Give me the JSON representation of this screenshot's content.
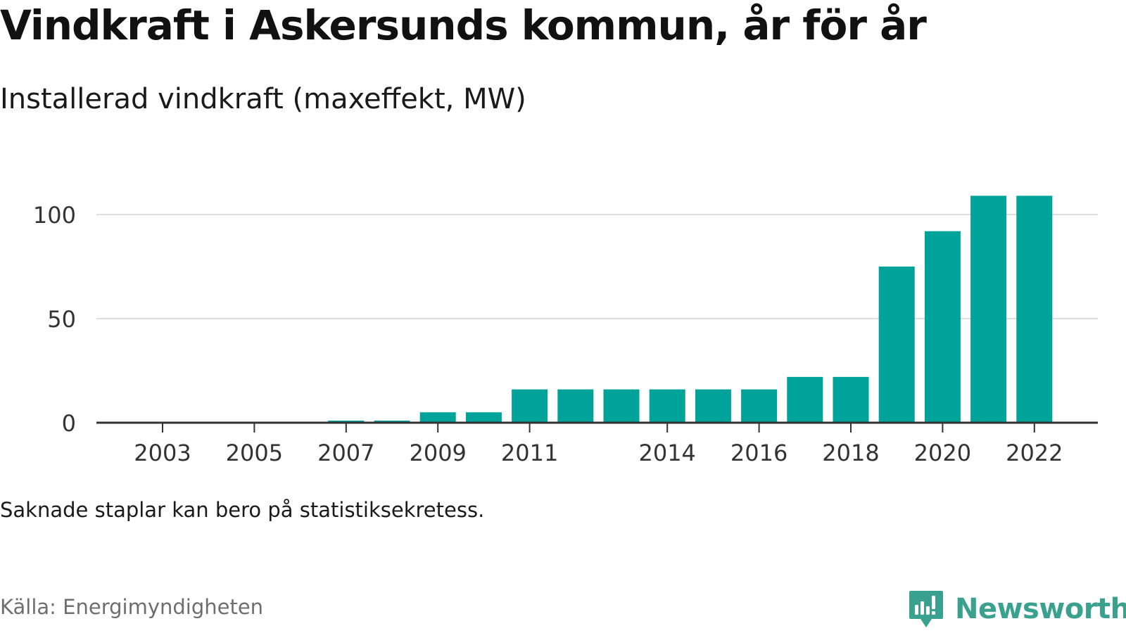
{
  "header": {
    "title": "Vindkraft i Askersunds kommun, år för år",
    "subtitle": "Installerad vindkraft (maxeffekt, MW)"
  },
  "footer": {
    "note": "Saknade staplar kan bero på statistiksekretess.",
    "source": "Källa: Energimyndigheten",
    "brand": "Newsworthy"
  },
  "colors": {
    "bar": "#00a39a",
    "gridline": "#dddddd",
    "axis": "#333333",
    "brand": "#3aa18e"
  },
  "icons": {
    "brand_logo": "newsworthy-logo-icon"
  },
  "chart_data": {
    "type": "bar",
    "title": "Vindkraft i Askersunds kommun, år för år",
    "subtitle": "Installerad vindkraft (maxeffekt, MW)",
    "xlabel": "",
    "ylabel": "",
    "categories": [
      "2003",
      "2004",
      "2005",
      "2006",
      "2007",
      "2008",
      "2009",
      "2010",
      "2011",
      "2012",
      "2013",
      "2014",
      "2015",
      "2016",
      "2017",
      "2018",
      "2019",
      "2020",
      "2021",
      "2022"
    ],
    "values": [
      0,
      0,
      0,
      0,
      1,
      1,
      5,
      5,
      16,
      16,
      16,
      16,
      16,
      16,
      22,
      22,
      75,
      92,
      109,
      109
    ],
    "x_tick_labels": [
      "2003",
      "2005",
      "2007",
      "2009",
      "2011",
      "2014",
      "2016",
      "2018",
      "2020",
      "2022"
    ],
    "y_ticks": [
      0,
      50,
      100
    ],
    "ylim": [
      0,
      112
    ],
    "grid": true,
    "legend": "none"
  }
}
